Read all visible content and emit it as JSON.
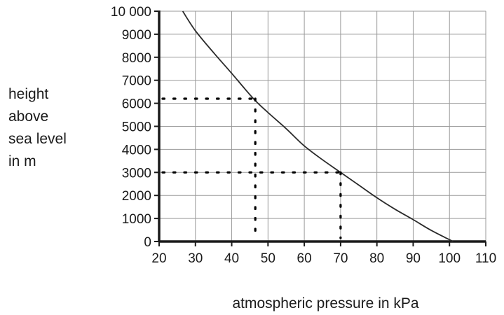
{
  "chart_data": {
    "type": "line",
    "title": "",
    "xlabel": "atmospheric pressure in kPa",
    "ylabel_lines": [
      "height",
      "above",
      "sea level",
      "in m"
    ],
    "xlim": [
      20,
      110
    ],
    "ylim": [
      0,
      10000
    ],
    "x_ticks": [
      20,
      30,
      40,
      50,
      60,
      70,
      80,
      90,
      100,
      110
    ],
    "y_ticks": [
      0,
      1000,
      2000,
      3000,
      4000,
      5000,
      6000,
      7000,
      8000,
      9000,
      10000
    ],
    "x_tick_labels": [
      "20",
      "30",
      "40",
      "50",
      "60",
      "70",
      "80",
      "90",
      "100",
      "110"
    ],
    "y_tick_labels": [
      "0",
      "1000",
      "2000",
      "3000",
      "4000",
      "5000",
      "6000",
      "7000",
      "8000",
      "9000",
      "10 000"
    ],
    "grid": true,
    "series": [
      {
        "points": [
          [
            26.5,
            10000
          ],
          [
            30,
            9150
          ],
          [
            35,
            8200
          ],
          [
            40,
            7300
          ],
          [
            46,
            6200
          ],
          [
            50,
            5600
          ],
          [
            55,
            4900
          ],
          [
            60,
            4150
          ],
          [
            65,
            3550
          ],
          [
            70,
            3000
          ],
          [
            75,
            2450
          ],
          [
            80,
            1900
          ],
          [
            85,
            1400
          ],
          [
            90,
            950
          ],
          [
            95,
            480
          ],
          [
            101,
            0
          ]
        ]
      }
    ],
    "annotations": [
      {
        "kind": "dotted-horizontal",
        "y": 6200,
        "x_from": 20,
        "x_to": 46
      },
      {
        "kind": "dotted-vertical",
        "x": 46.5,
        "y_from": 6200,
        "y_to": 0
      },
      {
        "kind": "dotted-horizontal",
        "y": 3000,
        "x_from": 20,
        "x_to": 70
      },
      {
        "kind": "dotted-vertical",
        "x": 70,
        "y_from": 3000,
        "y_to": 0
      }
    ],
    "colors": {
      "grid": "#9a9a9a",
      "axis": "#1a1a1a",
      "curve": "#2a2a2a",
      "dots": "#000000"
    }
  }
}
